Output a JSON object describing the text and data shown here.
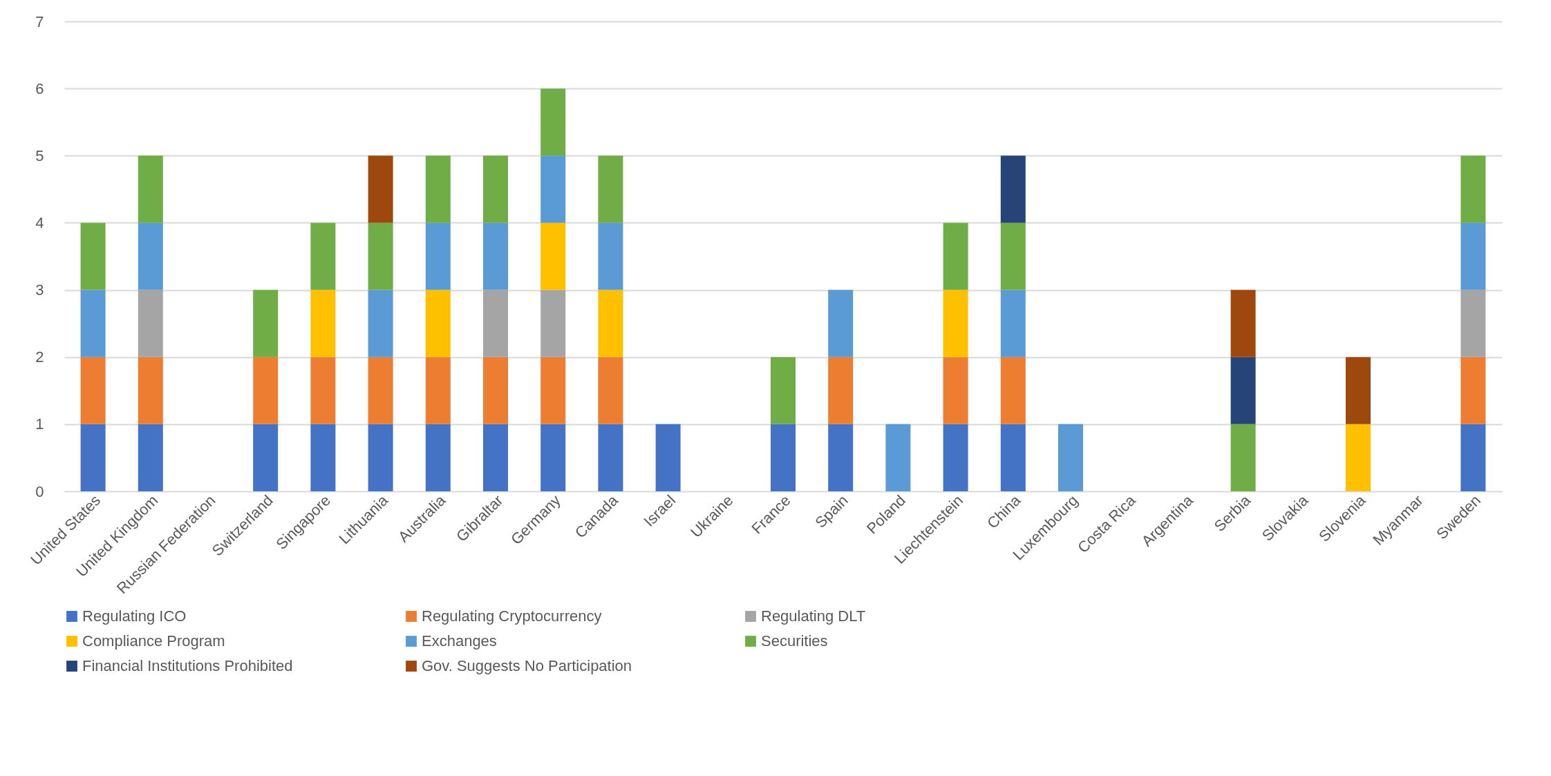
{
  "chart_data": {
    "type": "bar",
    "stacked": true,
    "categories": [
      "United States",
      "United Kingdom",
      "Russian Federation",
      "Switzerland",
      "Singapore",
      "Lithuania",
      "Australia",
      "Gibraltar",
      "Germany",
      "Canada",
      "Israel",
      "Ukraine",
      "France",
      "Spain",
      "Poland",
      "Liechtenstein",
      "China",
      "Luxembourg",
      "Costa Rica",
      "Argentina",
      "Serbia",
      "Slovakia",
      "Slovenia",
      "Myanmar",
      "Sweden"
    ],
    "series": [
      {
        "name": "Regulating ICO",
        "color": "#4472c4",
        "values": [
          1,
          1,
          0,
          1,
          1,
          1,
          1,
          1,
          1,
          1,
          1,
          0,
          1,
          1,
          0,
          1,
          1,
          0,
          0,
          0,
          0,
          0,
          0,
          0,
          1
        ]
      },
      {
        "name": "Regulating Cryptocurrency",
        "color": "#ed7d31",
        "values": [
          1,
          1,
          0,
          1,
          1,
          1,
          1,
          1,
          1,
          1,
          0,
          0,
          0,
          1,
          0,
          1,
          1,
          0,
          0,
          0,
          0,
          0,
          0,
          0,
          1
        ]
      },
      {
        "name": "Regulating DLT",
        "color": "#a5a5a5",
        "values": [
          0,
          1,
          0,
          0,
          0,
          0,
          0,
          1,
          1,
          0,
          0,
          0,
          0,
          0,
          0,
          0,
          0,
          0,
          0,
          0,
          0,
          0,
          0,
          0,
          1
        ]
      },
      {
        "name": "Compliance Program",
        "color": "#ffc000",
        "values": [
          0,
          0,
          0,
          0,
          1,
          0,
          1,
          0,
          1,
          1,
          0,
          0,
          0,
          0,
          0,
          1,
          0,
          0,
          0,
          0,
          0,
          0,
          1,
          0,
          0
        ]
      },
      {
        "name": "Exchanges",
        "color": "#5b9bd5",
        "values": [
          1,
          1,
          0,
          0,
          0,
          1,
          1,
          1,
          1,
          1,
          0,
          0,
          0,
          1,
          1,
          0,
          1,
          1,
          0,
          0,
          0,
          0,
          0,
          0,
          1
        ]
      },
      {
        "name": "Securities",
        "color": "#70ad47",
        "values": [
          1,
          1,
          0,
          1,
          1,
          1,
          1,
          1,
          1,
          1,
          0,
          0,
          1,
          0,
          0,
          1,
          1,
          0,
          0,
          0,
          1,
          0,
          0,
          0,
          1
        ]
      },
      {
        "name": "Financial Institutions Prohibited",
        "color": "#264478",
        "values": [
          0,
          0,
          0,
          0,
          0,
          0,
          0,
          0,
          0,
          0,
          0,
          0,
          0,
          0,
          0,
          0,
          1,
          0,
          0,
          0,
          1,
          0,
          0,
          0,
          0
        ]
      },
      {
        "name": "Gov. Suggests No Participation",
        "color": "#9e480e",
        "values": [
          0,
          0,
          0,
          0,
          0,
          1,
          0,
          0,
          0,
          0,
          0,
          0,
          0,
          0,
          0,
          0,
          0,
          0,
          0,
          0,
          1,
          0,
          1,
          0,
          0
        ]
      }
    ],
    "ylim": [
      0,
      7
    ],
    "yticks": [
      0,
      1,
      2,
      3,
      4,
      5,
      6,
      7
    ],
    "grid": "y",
    "legend": "bottom"
  }
}
